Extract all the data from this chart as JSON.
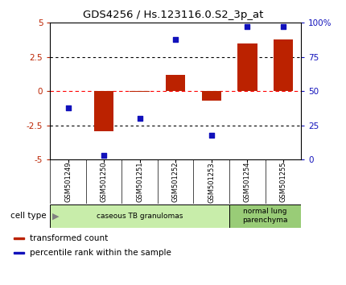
{
  "title": "GDS4256 / Hs.123116.0.S2_3p_at",
  "samples": [
    "GSM501249",
    "GSM501250",
    "GSM501251",
    "GSM501252",
    "GSM501253",
    "GSM501254",
    "GSM501255"
  ],
  "transformed_count": [
    0.0,
    -2.9,
    -0.05,
    1.2,
    -0.7,
    3.5,
    3.8
  ],
  "percentile_rank": [
    38,
    3,
    30,
    88,
    18,
    97,
    97
  ],
  "ylim_left": [
    -5,
    5
  ],
  "ylim_right": [
    0,
    100
  ],
  "yticks_left": [
    -5,
    -2.5,
    0,
    2.5,
    5
  ],
  "ytick_labels_left": [
    "-5",
    "-2.5",
    "0",
    "2.5",
    "5"
  ],
  "yticks_right": [
    0,
    25,
    50,
    75,
    100
  ],
  "ytick_labels_right": [
    "0",
    "25",
    "50",
    "75",
    "100%"
  ],
  "bar_color": "#bb2200",
  "dot_color": "#1111bb",
  "cell_type_groups": [
    {
      "label": "caseous TB granulomas",
      "start": 0,
      "end": 5,
      "color": "#c8edaa"
    },
    {
      "label": "normal lung\nparenchyma",
      "start": 5,
      "end": 7,
      "color": "#99cc77"
    }
  ],
  "legend_items": [
    {
      "color": "#bb2200",
      "label": "transformed count"
    },
    {
      "color": "#1111bb",
      "label": "percentile rank within the sample"
    }
  ],
  "cell_type_label": "cell type",
  "tick_area_bg": "#cccccc",
  "bar_width": 0.55
}
